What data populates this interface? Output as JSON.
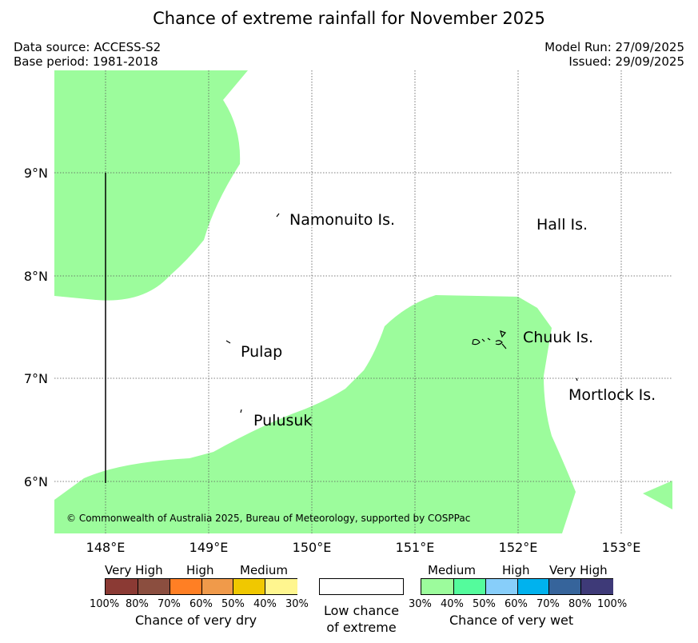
{
  "title": "Chance of extreme rainfall for November 2025",
  "meta": {
    "data_source": "Data source: ACCESS-S2",
    "base_period": "Base period: 1981-2018",
    "model_run": "Model Run: 27/09/2025",
    "issued": "Issued: 29/09/2025"
  },
  "map": {
    "lon_labels": [
      "148°E",
      "149°E",
      "150°E",
      "151°E",
      "152°E",
      "153°E"
    ],
    "lat_labels": [
      "9°N",
      "8°N",
      "7°N",
      "6°N"
    ],
    "places": {
      "namonuito": "Namonuito Is.",
      "hall": "Hall Is.",
      "chuuk": "Chuuk Is.",
      "pulap": "Pulap",
      "mortlock": "Mortlock Is.",
      "pulusuk": "Pulusuk"
    },
    "copyright": "© Commonwealth of Australia 2025, Bureau of Meteorology, supported by COSPPac",
    "wet_region_color": "#9cfc9c"
  },
  "legend": {
    "dry": {
      "categories": [
        "Very High",
        "High",
        "Medium"
      ],
      "percent_labels": [
        "100%",
        "80%",
        "70%",
        "60%",
        "50%",
        "40%",
        "30%"
      ],
      "colors": [
        "#8b3a34",
        "#8b4e3f",
        "#ff7f24",
        "#f09a4a",
        "#f0c800",
        "#fff68f"
      ],
      "caption": "Chance of very dry"
    },
    "neutral": {
      "caption_line1": "Low chance",
      "caption_line2": "of extreme",
      "color": "#ffffff"
    },
    "wet": {
      "categories": [
        "Medium",
        "High",
        "Very High"
      ],
      "percent_labels": [
        "30%",
        "40%",
        "50%",
        "60%",
        "70%",
        "80%",
        "100%"
      ],
      "colors": [
        "#9cfc9c",
        "#54fc9c",
        "#87cefa",
        "#00b2ee",
        "#36649b",
        "#3e3a78"
      ],
      "caption": "Chance of very wet"
    }
  }
}
